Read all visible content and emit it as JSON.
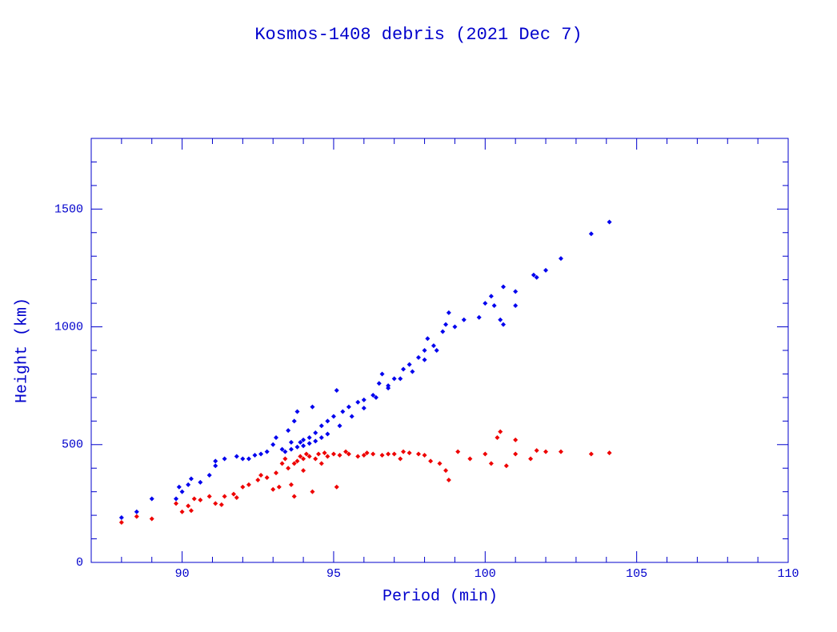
{
  "chart_data": {
    "type": "scatter",
    "title": "Kosmos-1408 debris (2021 Dec 7)",
    "x_label": "Period (min)",
    "y_label": "Height (km)",
    "xlim": [
      87,
      110
    ],
    "ylim": [
      0,
      1800
    ],
    "xticks": [
      90,
      95,
      100,
      105,
      110
    ],
    "yticks": [
      0,
      500,
      1000,
      1500
    ],
    "xminorticks": [
      88,
      89,
      91,
      92,
      93,
      94,
      96,
      97,
      98,
      99,
      101,
      102,
      103,
      104,
      106,
      107,
      108,
      109
    ],
    "yminorticks": [
      100,
      200,
      300,
      400,
      600,
      700,
      800,
      900,
      1100,
      1200,
      1300,
      1400,
      1600,
      1700
    ],
    "axis_color": "#0000cc",
    "series": [
      {
        "color": "#0000ee",
        "x": [
          88.0,
          88.5,
          89.0,
          89.8,
          89.9,
          90.0,
          90.2,
          90.3,
          90.6,
          90.9,
          91.1,
          91.1,
          91.4,
          91.8,
          92.0,
          92.2,
          92.4,
          92.6,
          92.8,
          93.0,
          93.1,
          93.3,
          93.5,
          93.6,
          93.7,
          93.8,
          93.9,
          94.0,
          94.2,
          94.3,
          94.4,
          94.6,
          94.8,
          95.0,
          95.1,
          95.3,
          95.5,
          95.8,
          96.0,
          96.3,
          96.5,
          96.6,
          96.8,
          97.0,
          97.3,
          97.5,
          97.8,
          98.0,
          98.1,
          98.3,
          98.6,
          98.8,
          98.7,
          99.0,
          99.3,
          99.8,
          100.0,
          100.2,
          100.3,
          100.5,
          100.6,
          100.6,
          101.0,
          101.0,
          101.6,
          101.7,
          102.0,
          102.5,
          103.5,
          104.1,
          93.4,
          93.6,
          93.8,
          94.0,
          94.2,
          94.4,
          94.6,
          94.8,
          95.2,
          95.6,
          96.0,
          96.4,
          96.8,
          97.2,
          97.6,
          98.0,
          98.4
        ],
        "values": [
          190,
          215,
          270,
          270,
          320,
          300,
          330,
          355,
          340,
          370,
          410,
          430,
          440,
          450,
          440,
          440,
          455,
          460,
          470,
          500,
          530,
          480,
          560,
          510,
          600,
          640,
          510,
          520,
          530,
          660,
          550,
          580,
          600,
          620,
          730,
          640,
          660,
          680,
          690,
          710,
          760,
          800,
          750,
          780,
          820,
          840,
          870,
          900,
          950,
          920,
          980,
          1060,
          1010,
          1000,
          1030,
          1040,
          1100,
          1130,
          1090,
          1030,
          1170,
          1010,
          1150,
          1090,
          1220,
          1210,
          1240,
          1290,
          1395,
          1445,
          470,
          480,
          490,
          495,
          505,
          515,
          530,
          545,
          580,
          620,
          655,
          700,
          740,
          780,
          810,
          860,
          900
        ]
      },
      {
        "color": "#ee0000",
        "x": [
          88.0,
          88.5,
          89.0,
          89.8,
          90.0,
          90.2,
          90.3,
          90.4,
          90.6,
          90.9,
          91.1,
          91.3,
          91.4,
          91.7,
          91.8,
          92.0,
          92.2,
          92.5,
          92.6,
          92.8,
          93.0,
          93.1,
          93.2,
          93.3,
          93.5,
          93.6,
          93.7,
          93.7,
          93.8,
          94.0,
          94.0,
          94.2,
          94.3,
          94.4,
          94.5,
          94.6,
          94.8,
          95.0,
          95.1,
          95.2,
          95.5,
          95.8,
          96.0,
          96.3,
          96.6,
          97.0,
          97.2,
          97.5,
          97.8,
          98.0,
          98.2,
          98.5,
          98.7,
          98.8,
          99.1,
          99.5,
          100.0,
          100.2,
          100.4,
          100.5,
          100.7,
          101.0,
          101.0,
          101.5,
          101.7,
          102.0,
          102.5,
          103.5,
          104.1,
          93.4,
          93.9,
          94.1,
          94.7,
          95.4,
          96.1,
          96.8,
          97.3
        ],
        "values": [
          170,
          195,
          185,
          250,
          215,
          240,
          220,
          270,
          265,
          280,
          250,
          245,
          280,
          290,
          275,
          320,
          330,
          350,
          370,
          360,
          310,
          380,
          320,
          420,
          400,
          330,
          420,
          280,
          430,
          440,
          390,
          450,
          300,
          440,
          460,
          420,
          450,
          460,
          320,
          455,
          460,
          450,
          455,
          460,
          455,
          460,
          440,
          465,
          460,
          455,
          430,
          420,
          390,
          350,
          470,
          440,
          460,
          420,
          530,
          555,
          410,
          520,
          460,
          440,
          475,
          470,
          470,
          460,
          465,
          440,
          450,
          460,
          465,
          470,
          465,
          460,
          470
        ]
      }
    ]
  }
}
